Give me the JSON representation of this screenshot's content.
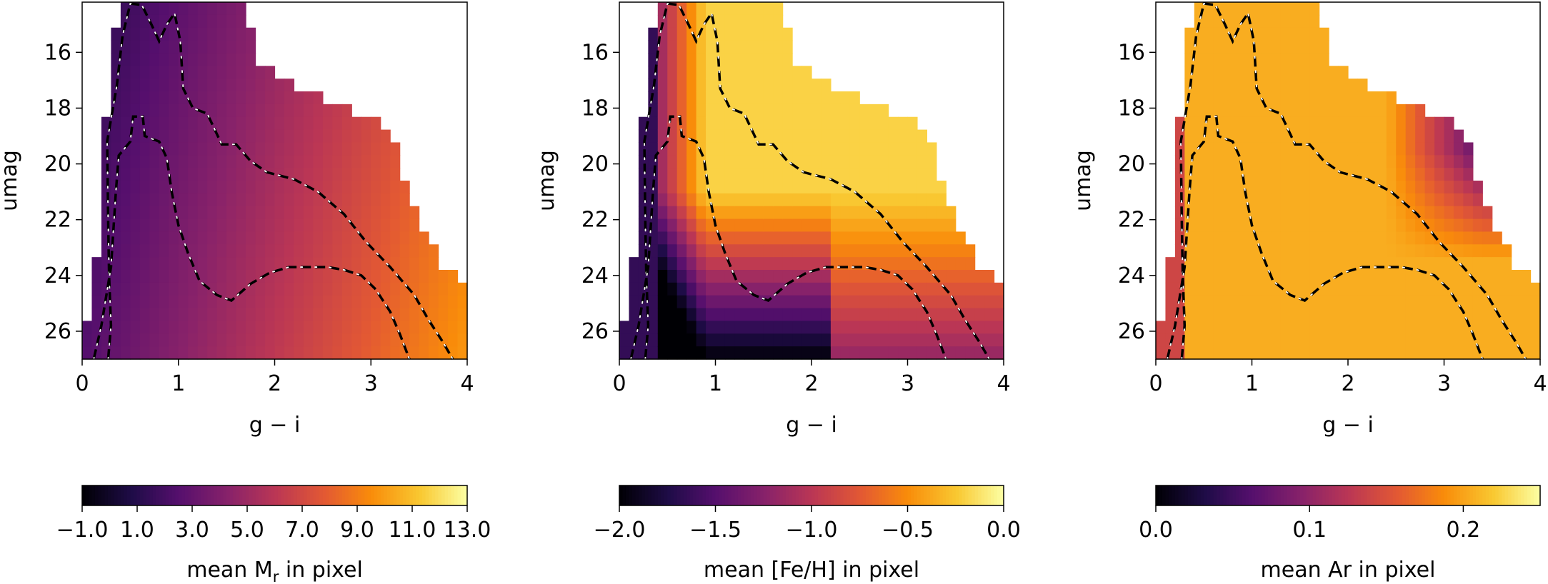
{
  "chart_data": [
    {
      "type": "heatmap",
      "panel": "left",
      "xlabel": "g − i",
      "ylabel": "umag",
      "xlim": [
        0,
        4
      ],
      "ylim": [
        27,
        14.2
      ],
      "x_ticks": [
        "0",
        "1",
        "2",
        "3",
        "4"
      ],
      "y_ticks": [
        "16",
        "18",
        "20",
        "22",
        "24",
        "26"
      ],
      "colormap": "inferno",
      "colorbar": {
        "label_pre": "mean M",
        "label_sub": "r",
        "label_post": " in pixel",
        "range": [
          -1.0,
          13.0
        ],
        "ticks": [
          -1.0,
          1.0,
          3.0,
          5.0,
          7.0,
          9.0,
          11.0,
          13.0
        ],
        "tick_labels": [
          "−1.0",
          "1.0",
          "3.0",
          "5.0",
          "7.0",
          "9.0",
          "11.0",
          "13.0"
        ]
      }
    },
    {
      "type": "heatmap",
      "panel": "middle",
      "xlabel": "g − i",
      "ylabel": "umag",
      "xlim": [
        0,
        4
      ],
      "ylim": [
        27,
        14.2
      ],
      "x_ticks": [
        "0",
        "1",
        "2",
        "3",
        "4"
      ],
      "y_ticks": [
        "16",
        "18",
        "20",
        "22",
        "24",
        "26"
      ],
      "colormap": "inferno",
      "colorbar": {
        "label_pre": "mean [Fe/H] in pixel",
        "label_sub": "",
        "label_post": "",
        "range": [
          -2.0,
          0.0
        ],
        "ticks": [
          -2.0,
          -1.5,
          -1.0,
          -0.5,
          0.0
        ],
        "tick_labels": [
          "−2.0",
          "−1.5",
          "−1.0",
          "−0.5",
          "0.0"
        ]
      }
    },
    {
      "type": "heatmap",
      "panel": "right",
      "xlabel": "g − i",
      "ylabel": "umag",
      "xlim": [
        0,
        4
      ],
      "ylim": [
        27,
        14.2
      ],
      "x_ticks": [
        "0",
        "1",
        "2",
        "3",
        "4"
      ],
      "y_ticks": [
        "16",
        "18",
        "20",
        "22",
        "24",
        "26"
      ],
      "colormap": "inferno",
      "colorbar": {
        "label_pre": "mean Ar in pixel",
        "label_sub": "",
        "label_post": "",
        "range": [
          0.0,
          0.25
        ],
        "ticks": [
          0.0,
          0.1,
          0.2
        ],
        "tick_labels": [
          "0.0",
          "0.1",
          "0.2"
        ]
      }
    }
  ],
  "density_contours": {
    "outer": [
      [
        0.27,
        27.0
      ],
      [
        0.3,
        25.8
      ],
      [
        0.28,
        24.0
      ],
      [
        0.27,
        22.0
      ],
      [
        0.26,
        19.2
      ],
      [
        0.36,
        17.2
      ],
      [
        0.42,
        15.4
      ],
      [
        0.5,
        14.25
      ],
      [
        0.62,
        14.3
      ],
      [
        0.72,
        15.0
      ],
      [
        0.8,
        15.6
      ],
      [
        0.88,
        15.0
      ],
      [
        0.96,
        14.6
      ],
      [
        1.02,
        15.6
      ],
      [
        1.05,
        17.3
      ],
      [
        1.15,
        18.0
      ],
      [
        1.3,
        18.2
      ],
      [
        1.45,
        19.3
      ],
      [
        1.6,
        19.3
      ],
      [
        1.75,
        19.9
      ],
      [
        1.92,
        20.3
      ],
      [
        2.2,
        20.55
      ],
      [
        2.45,
        21.0
      ],
      [
        2.72,
        21.8
      ],
      [
        2.95,
        22.8
      ],
      [
        3.2,
        23.7
      ],
      [
        3.45,
        24.7
      ],
      [
        3.6,
        25.6
      ],
      [
        3.75,
        26.4
      ],
      [
        3.85,
        27.0
      ]
    ],
    "inner": [
      [
        0.12,
        27.0
      ],
      [
        0.2,
        25.8
      ],
      [
        0.3,
        23.7
      ],
      [
        0.35,
        21.0
      ],
      [
        0.38,
        19.7
      ],
      [
        0.5,
        19.2
      ],
      [
        0.53,
        18.3
      ],
      [
        0.63,
        18.3
      ],
      [
        0.65,
        19.0
      ],
      [
        0.8,
        19.2
      ],
      [
        0.88,
        19.8
      ],
      [
        0.93,
        21.0
      ],
      [
        1.0,
        22.2
      ],
      [
        1.1,
        23.2
      ],
      [
        1.22,
        24.2
      ],
      [
        1.4,
        24.7
      ],
      [
        1.55,
        24.9
      ],
      [
        1.75,
        24.3
      ],
      [
        1.95,
        23.9
      ],
      [
        2.15,
        23.7
      ],
      [
        2.35,
        23.7
      ],
      [
        2.55,
        23.7
      ],
      [
        2.72,
        23.8
      ],
      [
        2.9,
        24.0
      ],
      [
        3.05,
        24.5
      ],
      [
        3.2,
        25.3
      ],
      [
        3.3,
        26.1
      ],
      [
        3.4,
        27.0
      ]
    ]
  }
}
